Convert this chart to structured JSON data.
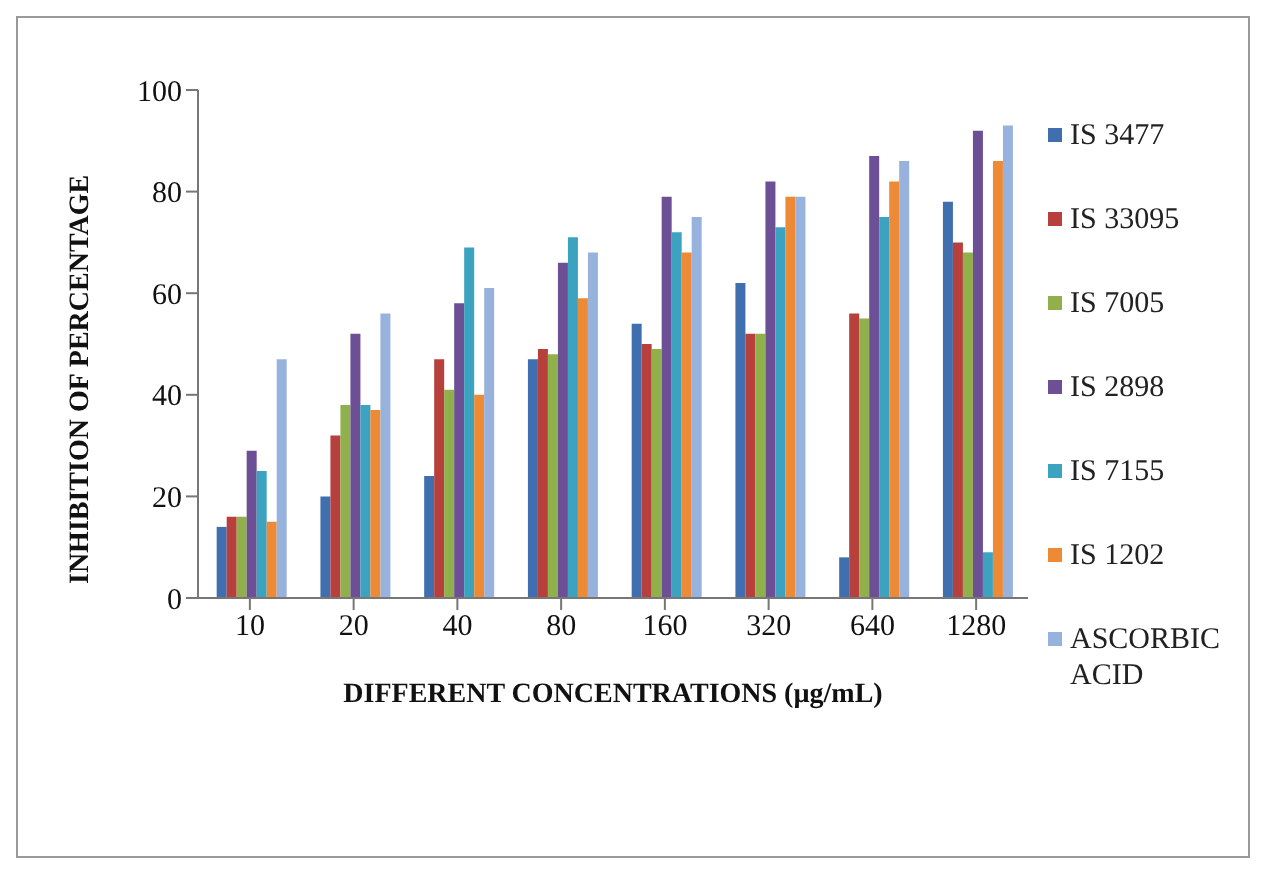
{
  "chart_data": {
    "type": "bar",
    "xlabel": "DIFFERENT CONCENTRATIONS (µg/mL)",
    "ylabel": "INHIBITION OF  PERCENTAGE",
    "categories": [
      "10",
      "20",
      "40",
      "80",
      "160",
      "320",
      "640",
      "1280"
    ],
    "series": [
      {
        "name": "IS 3477",
        "color": "#3f6fae",
        "values": [
          14,
          20,
          24,
          47,
          54,
          62,
          8,
          78
        ]
      },
      {
        "name": "IS 33095",
        "color": "#b8403c",
        "values": [
          16,
          32,
          47,
          49,
          50,
          52,
          56,
          70
        ]
      },
      {
        "name": "IS 7005",
        "color": "#8fb04a",
        "values": [
          16,
          38,
          41,
          48,
          49,
          52,
          55,
          68
        ]
      },
      {
        "name": "IS 2898",
        "color": "#6c4f94",
        "values": [
          29,
          52,
          58,
          66,
          79,
          82,
          87,
          92
        ]
      },
      {
        "name": "IS 7155",
        "color": "#3ba3bf",
        "values": [
          25,
          38,
          69,
          71,
          72,
          73,
          75,
          9
        ]
      },
      {
        "name": "IS 1202",
        "color": "#ee8a36",
        "values": [
          15,
          37,
          40,
          59,
          68,
          79,
          82,
          86
        ]
      },
      {
        "name": "ASCORBIC ACID",
        "color": "#97b2dc",
        "values": [
          47,
          56,
          61,
          68,
          75,
          79,
          86,
          93
        ]
      }
    ],
    "ylim": [
      0,
      100
    ],
    "yticks": [
      0,
      20,
      40,
      60,
      80,
      100
    ],
    "legend": "right"
  }
}
